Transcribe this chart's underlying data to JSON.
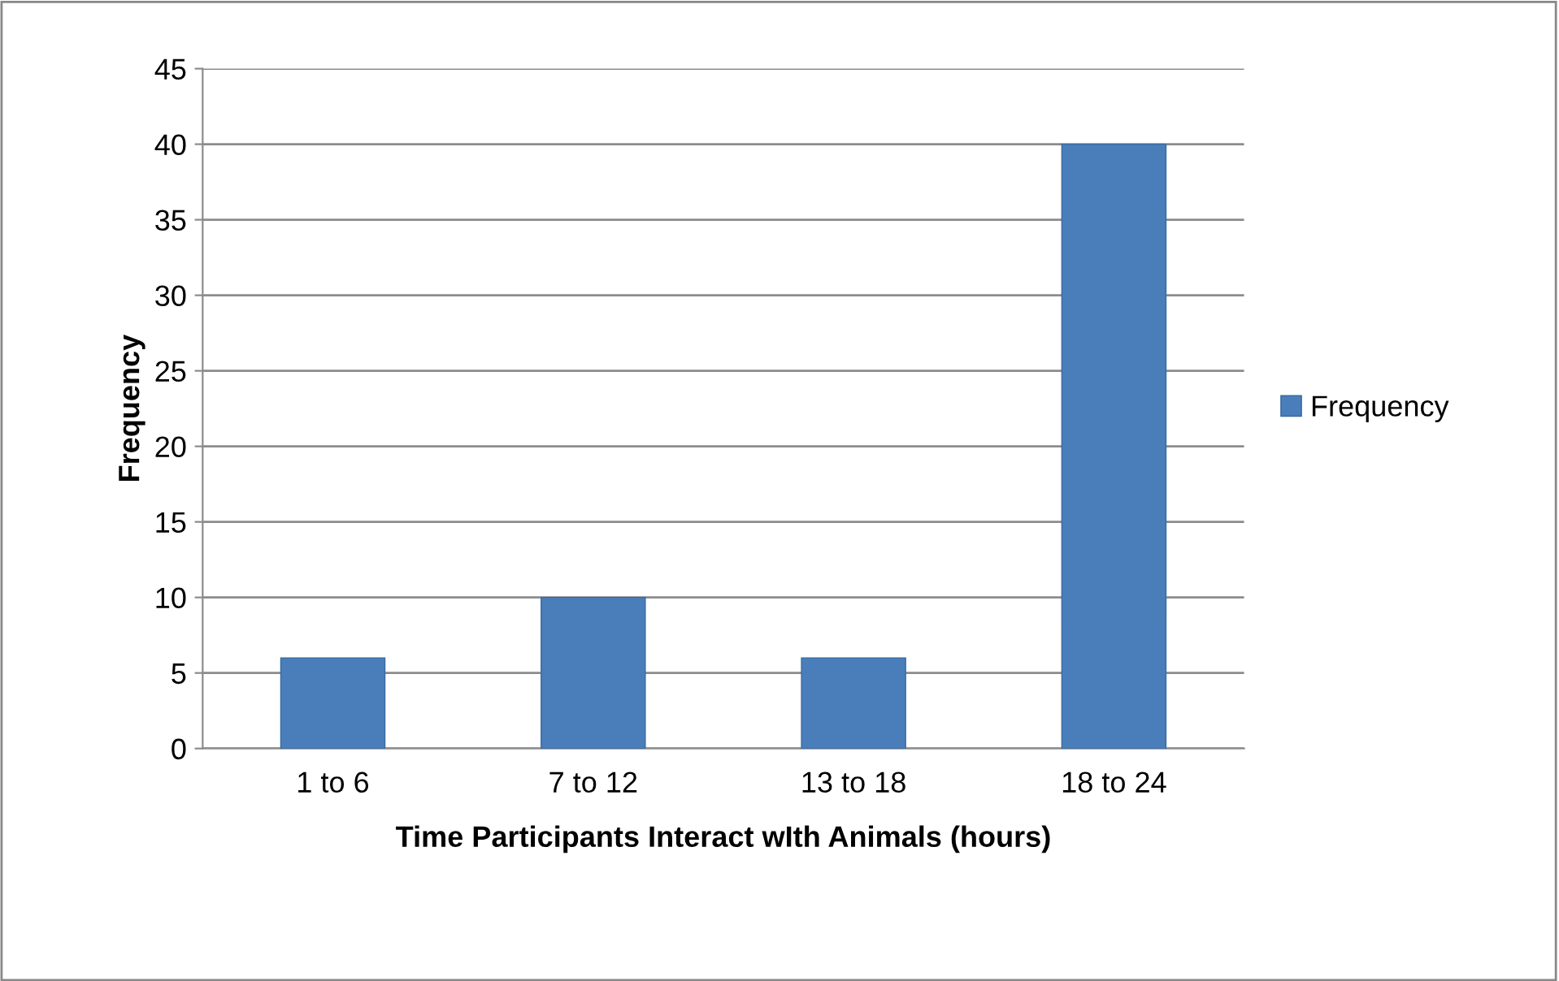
{
  "chart_data": {
    "type": "bar",
    "xlabel": "Time Participants Interact wIth Animals (hours)",
    "ylabel": "Frequency",
    "categories": [
      "1 to 6",
      "7 to 12",
      "13 to 18",
      "18 to 24"
    ],
    "series": [
      {
        "name": "Frequency",
        "color": "#4a7ebb",
        "values": [
          6,
          10,
          6,
          40
        ]
      }
    ],
    "ylim": [
      0,
      45
    ],
    "yticks": [
      0,
      5,
      10,
      15,
      20,
      25,
      30,
      35,
      40,
      45
    ],
    "grid": "y",
    "legend": "right"
  }
}
